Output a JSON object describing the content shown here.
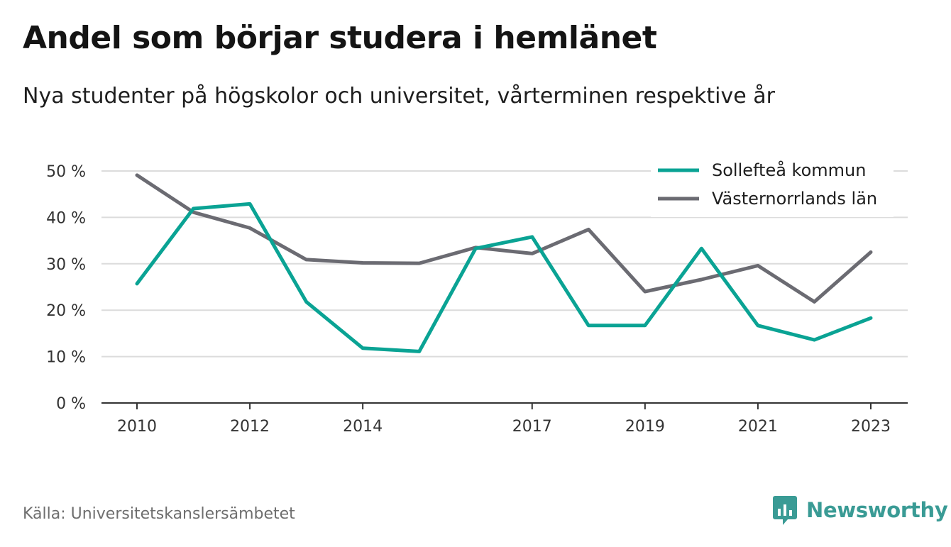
{
  "title": "Andel som börjar studera i hemlänet",
  "subtitle": "Nya studenter på högskolor och universitet, vårterminen respektive år",
  "source": "Källa: Universitetskanslersämbetet",
  "brand": {
    "name": "Newsworthy",
    "icon": "newsworthy-logo-icon",
    "color": "#3a9b95"
  },
  "chart_data": {
    "type": "line",
    "title": "Andel som börjar studera i hemlänet",
    "subtitle": "Nya studenter på högskolor och universitet, vårterminen respektive år",
    "x": [
      2010,
      2011,
      2012,
      2013,
      2014,
      2015,
      2016,
      2017,
      2018,
      2019,
      2020,
      2021,
      2022,
      2023
    ],
    "x_tick_labels": [
      "2010",
      "2012",
      "2014",
      "2017",
      "2019",
      "2021",
      "2023"
    ],
    "x_tick_values": [
      2010,
      2012,
      2014,
      2017,
      2019,
      2021,
      2023
    ],
    "y_tick_labels": [
      "0 %",
      "10 %",
      "20 %",
      "30 %",
      "40 %",
      "50 %"
    ],
    "y_tick_values": [
      0,
      10,
      20,
      30,
      40,
      50
    ],
    "ylim": [
      0,
      50
    ],
    "grid": true,
    "legend_position": "top-right",
    "series": [
      {
        "name": "Sollefteå kommun",
        "color": "#0aa394",
        "values": [
          25.7,
          41.9,
          42.9,
          21.8,
          11.8,
          11.1,
          33.3,
          35.8,
          16.7,
          16.7,
          33.3,
          16.7,
          13.6,
          18.3
        ]
      },
      {
        "name": "Västernorrlands län",
        "color": "#6b6b72",
        "values": [
          49.1,
          41.1,
          37.7,
          30.9,
          30.2,
          30.1,
          33.5,
          32.2,
          37.4,
          24.0,
          26.6,
          29.6,
          21.8,
          32.5
        ]
      }
    ]
  }
}
